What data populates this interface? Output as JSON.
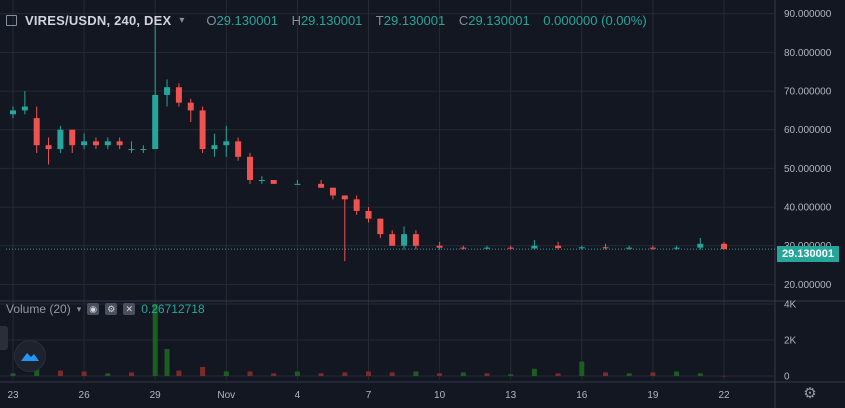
{
  "header": {
    "symbol": "VIRES/USDN, 240, DEX",
    "open_key": "O",
    "open": "29.130001",
    "high_key": "H",
    "high": "29.130001",
    "low_key": "T",
    "low": "29.130001",
    "close_key": "C",
    "close": "29.130001",
    "change": "0.000000 (0.00%)"
  },
  "volume_legend": {
    "label": "Volume (20)",
    "value": "0.26712718"
  },
  "last_price_label": "29.130001",
  "icons": {
    "expand": "square-icon",
    "chevron": "chevron-down-icon",
    "eye": "eye-icon",
    "gear": "gear-icon",
    "close": "close-icon",
    "logo": "tradingview-logo-icon",
    "settings": "settings-gear-icon"
  },
  "colors": {
    "background": "#131722",
    "grid": "#252a35",
    "up": "#26a69a",
    "down": "#ef5350",
    "text": "#b2b5be"
  },
  "chart_data": [
    {
      "type": "candlestick",
      "title": "VIRES/USDN, 240, DEX",
      "y_axis_ticks": [
        "90.000000",
        "80.000000",
        "70.000000",
        "60.000000",
        "50.000000",
        "40.000000",
        "30.000000",
        "20.000000"
      ],
      "x_axis_ticks": [
        "23",
        "26",
        "29",
        "Nov",
        "4",
        "7",
        "10",
        "13",
        "16",
        "19",
        "22"
      ],
      "ylim": [
        17,
        92
      ],
      "last_price": 29.130001,
      "series": [
        {
          "points": [
            [
              "Oct 23",
              64,
              66,
              63,
              65
            ],
            [
              "Oct 23.5",
              65,
              70,
              64,
              66
            ],
            [
              "Oct 24",
              63,
              66,
              54,
              56
            ],
            [
              "Oct 24.5",
              56,
              58,
              51,
              55
            ],
            [
              "Oct 25",
              55,
              61,
              54,
              60
            ],
            [
              "Oct 25.5",
              60,
              60,
              54,
              56
            ],
            [
              "Oct 26",
              56,
              59,
              55,
              57
            ],
            [
              "Oct 26.5",
              57,
              58,
              55,
              56
            ],
            [
              "Oct 27",
              56,
              58,
              55,
              57
            ],
            [
              "Oct 27.5",
              57,
              58,
              55,
              56
            ],
            [
              "Oct 28",
              55,
              57,
              54,
              55
            ],
            [
              "Oct 28.5",
              55,
              56,
              54,
              55
            ],
            [
              "Oct 29",
              55,
              87,
              55,
              69
            ],
            [
              "Oct 29.5",
              69,
              73,
              66,
              71
            ],
            [
              "Oct 30",
              71,
              72,
              66,
              67
            ],
            [
              "Oct 30.5",
              67,
              68,
              62,
              65
            ],
            [
              "Oct 31",
              65,
              66,
              54,
              55
            ],
            [
              "Oct 31.5",
              55,
              59,
              53,
              56
            ],
            [
              "Nov 1",
              56,
              61,
              53,
              57
            ],
            [
              "Nov 1.5",
              57,
              58,
              52,
              53
            ],
            [
              "Nov 2",
              53,
              54,
              46,
              47
            ],
            [
              "Nov 2.5",
              47,
              48,
              46,
              47
            ],
            [
              "Nov 3",
              47,
              47,
              46,
              46
            ],
            [
              "Nov 4",
              46,
              47,
              46,
              46
            ],
            [
              "Nov 5",
              46,
              47,
              45,
              45
            ],
            [
              "Nov 5.5",
              45,
              45,
              42,
              43
            ],
            [
              "Nov 6",
              43,
              43,
              26,
              42
            ],
            [
              "Nov 6.5",
              42,
              43,
              38,
              39
            ],
            [
              "Nov 7",
              39,
              40,
              36,
              37
            ],
            [
              "Nov 7.5",
              37,
              37,
              32,
              33
            ],
            [
              "Nov 8",
              33,
              34,
              30,
              30
            ],
            [
              "Nov 8.5",
              30,
              35,
              29,
              33
            ],
            [
              "Nov 9",
              33,
              34,
              29,
              30
            ],
            [
              "Nov 10",
              30,
              31,
              29,
              29.5
            ],
            [
              "Nov 11",
              29.5,
              30,
              29,
              29.3
            ],
            [
              "Nov 12",
              29.3,
              30,
              29,
              29.5
            ],
            [
              "Nov 13",
              29.5,
              30,
              29,
              29.3
            ],
            [
              "Nov 14",
              29.3,
              31.5,
              29,
              30
            ],
            [
              "Nov 15",
              30,
              31,
              29,
              29.4
            ],
            [
              "Nov 16",
              29.4,
              30,
              29,
              29.6
            ],
            [
              "Nov 17",
              29.6,
              30.5,
              29,
              29.4
            ],
            [
              "Nov 18",
              29.4,
              30,
              29,
              29.5
            ],
            [
              "Nov 19",
              29.5,
              30,
              29,
              29.3
            ],
            [
              "Nov 20",
              29.3,
              30,
              29,
              29.5
            ],
            [
              "Nov 21",
              29.5,
              32,
              29,
              30.5
            ],
            [
              "Nov 22",
              30.5,
              31,
              29,
              29.13
            ]
          ]
        }
      ]
    },
    {
      "type": "bar",
      "title": "Volume (20)",
      "y_axis_ticks": [
        "4K",
        "2K",
        "0"
      ],
      "ylim": [
        0,
        4000
      ],
      "x": [
        "Oct 23",
        "Oct 24",
        "Oct 25",
        "Oct 26",
        "Oct 27",
        "Oct 28",
        "Oct 29",
        "Oct 29.5",
        "Oct 30",
        "Oct 31",
        "Nov 1",
        "Nov 2",
        "Nov 3",
        "Nov 4",
        "Nov 5",
        "Nov 6",
        "Nov 7",
        "Nov 8",
        "Nov 9",
        "Nov 10",
        "Nov 11",
        "Nov 12",
        "Nov 13",
        "Nov 14",
        "Nov 15",
        "Nov 16",
        "Nov 17",
        "Nov 18",
        "Nov 19",
        "Nov 20",
        "Nov 21",
        "Nov 22"
      ],
      "values": [
        150,
        900,
        300,
        250,
        150,
        200,
        4000,
        1500,
        300,
        500,
        250,
        250,
        150,
        250,
        150,
        200,
        250,
        200,
        250,
        150,
        200,
        150,
        100,
        400,
        150,
        800,
        200,
        150,
        200,
        250,
        150,
        0.26712718
      ],
      "up": [
        true,
        true,
        false,
        false,
        true,
        false,
        true,
        true,
        false,
        false,
        true,
        false,
        false,
        true,
        false,
        false,
        false,
        false,
        true,
        false,
        true,
        false,
        true,
        true,
        false,
        true,
        false,
        true,
        false,
        true,
        true,
        false
      ]
    }
  ]
}
